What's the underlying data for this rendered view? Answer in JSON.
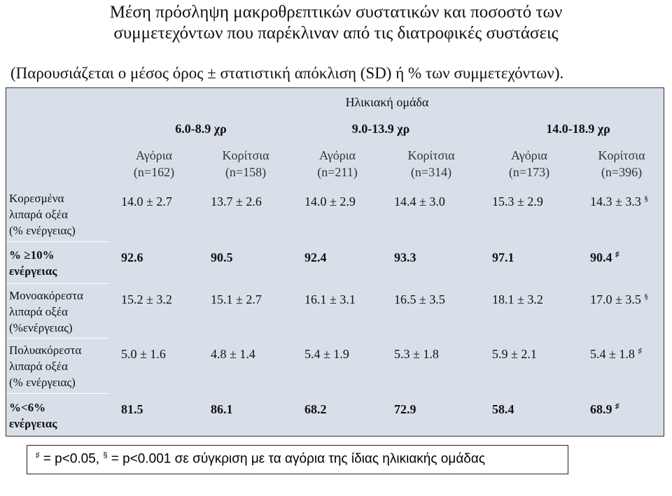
{
  "header": {
    "title_lines": [
      "Μέση πρόσληψη μακροθρεπτικών συστατικών και ποσοστό των",
      "συμμετεχόντων που παρέκλιναν από τις διατροφικές συστάσεις"
    ],
    "subtitle": "(Παρουσιάζεται ο μέσος όρος ± στατιστική απόκλιση (SD) ή % των συμμετεχόντων)."
  },
  "table": {
    "group_header": "Ηλικιακή ομάδα",
    "age_groups": [
      "6.0-8.9 χρ",
      "9.0-13.9 χρ",
      "14.0-18.9 χρ"
    ],
    "columns": [
      {
        "label": "Αγόρια",
        "n": "(n=162)"
      },
      {
        "label": "Κορίτσια",
        "n": "(n=158)"
      },
      {
        "label": "Αγόρια",
        "n": "(n=211)"
      },
      {
        "label": "Κορίτσια",
        "n": "(n=314)"
      },
      {
        "label": "Αγόρια",
        "n": "(n=173)"
      },
      {
        "label": "Κορίτσια",
        "n": "(n=396)"
      }
    ],
    "rows": [
      {
        "label": [
          "Κορεσμένα",
          "λιπαρά οξέα",
          "(% ενέργειας)"
        ],
        "bold": false,
        "cells": [
          {
            "text": "14.0 ± 2.7"
          },
          {
            "text": "13.7 ± 2.6"
          },
          {
            "text": "14.0 ± 2.9"
          },
          {
            "text": "14.4 ± 3.0"
          },
          {
            "text": "15.3 ± 2.9"
          },
          {
            "text": "14.3 ± 3.3",
            "sup": "§"
          }
        ]
      },
      {
        "label": [
          "% ≥10%",
          "ενέργειας"
        ],
        "bold": true,
        "cells": [
          {
            "text": "92.6"
          },
          {
            "text": "90.5"
          },
          {
            "text": "92.4"
          },
          {
            "text": "93.3"
          },
          {
            "text": "97.1"
          },
          {
            "text": "90.4",
            "sup": "♯"
          }
        ]
      },
      {
        "label": [
          "Μονοακόρεστα",
          "λιπαρά οξέα",
          "(%ενέργειας)"
        ],
        "bold": false,
        "cells": [
          {
            "text": "15.2 ± 3.2"
          },
          {
            "text": "15.1 ± 2.7"
          },
          {
            "text": "16.1 ± 3.1"
          },
          {
            "text": "16.5 ± 3.5"
          },
          {
            "text": "18.1 ± 3.2"
          },
          {
            "text": "17.0 ± 3.5",
            "sup": "§"
          }
        ]
      },
      {
        "label": [
          "Πολυακόρεστα",
          "λιπαρά οξέα",
          "(% ενέργειας)"
        ],
        "bold": false,
        "cells": [
          {
            "text": "5.0 ± 1.6"
          },
          {
            "text": "4.8 ± 1.4"
          },
          {
            "text": "5.4 ± 1.9"
          },
          {
            "text": "5.3 ± 1.8"
          },
          {
            "text": "5.9 ± 2.1"
          },
          {
            "text": "5.4 ± 1.8",
            "sup": "♯"
          }
        ]
      },
      {
        "label": [
          "%<6%",
          "ενέργειας"
        ],
        "bold": true,
        "cells": [
          {
            "text": "81.5"
          },
          {
            "text": "86.1"
          },
          {
            "text": "68.2"
          },
          {
            "text": "72.9"
          },
          {
            "text": "58.4"
          },
          {
            "text": "68.9",
            "sup": "♯"
          }
        ]
      }
    ]
  },
  "footnote": {
    "items": [
      {
        "symbol": "♯",
        "text": " = p<0.05, "
      },
      {
        "symbol": "§",
        "text": " = p<0.001 σε σύγκριση με τα αγόρια της ίδιας ηλικιακής ομάδας"
      }
    ]
  }
}
